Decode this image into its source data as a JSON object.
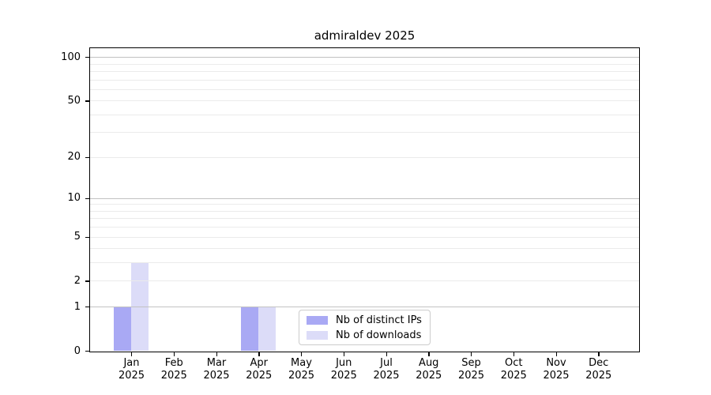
{
  "chart_data": {
    "type": "bar",
    "title": "admiraldev 2025",
    "x_categories": [
      "Jan",
      "Feb",
      "Mar",
      "Apr",
      "May",
      "Jun",
      "Jul",
      "Aug",
      "Sep",
      "Oct",
      "Nov",
      "Dec"
    ],
    "x_year": "2025",
    "series": [
      {
        "name": "Nb of distinct IPs",
        "color": "#a9a9f4",
        "values": [
          1,
          0,
          0,
          1,
          0,
          0,
          0,
          0,
          0,
          0,
          0,
          0
        ]
      },
      {
        "name": "Nb of downloads",
        "color": "#dcdcf8",
        "values": [
          3,
          0,
          0,
          1,
          0,
          0,
          0,
          0,
          0,
          0,
          0,
          0
        ]
      }
    ],
    "yscale": "log1p",
    "ylim": [
      0,
      115
    ],
    "yticks": [
      0,
      1,
      2,
      5,
      10,
      20,
      50,
      100
    ],
    "major_gridlines": [
      1,
      10,
      100
    ],
    "minor_gridlines": [
      2,
      3,
      4,
      5,
      6,
      7,
      8,
      9,
      20,
      30,
      40,
      50,
      60,
      70,
      80,
      90
    ],
    "grid_major_color": "#c2c2c2",
    "grid_minor_color": "#ebebeb",
    "legend_position": "lower center-right inside plot",
    "grid": "on"
  }
}
